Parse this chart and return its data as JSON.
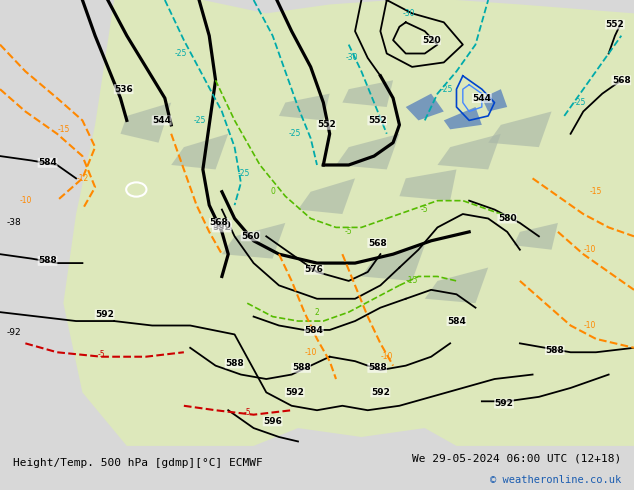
{
  "title_left": "Height/Temp. 500 hPa [gdmp][°C] ECMWF",
  "title_right": "We 29-05-2024 06:00 UTC (12+18)",
  "copyright": "© weatheronline.co.uk",
  "bg_color": "#d8d8d8",
  "land_color": "#dde8bb",
  "ocean_color": "#c8cfd8",
  "fig_width": 6.34,
  "fig_height": 4.9,
  "dpi": 100,
  "bottom_bar_color": "#e8e8e8",
  "title_color": "#000000",
  "copyright_color": "#1a5cb0"
}
